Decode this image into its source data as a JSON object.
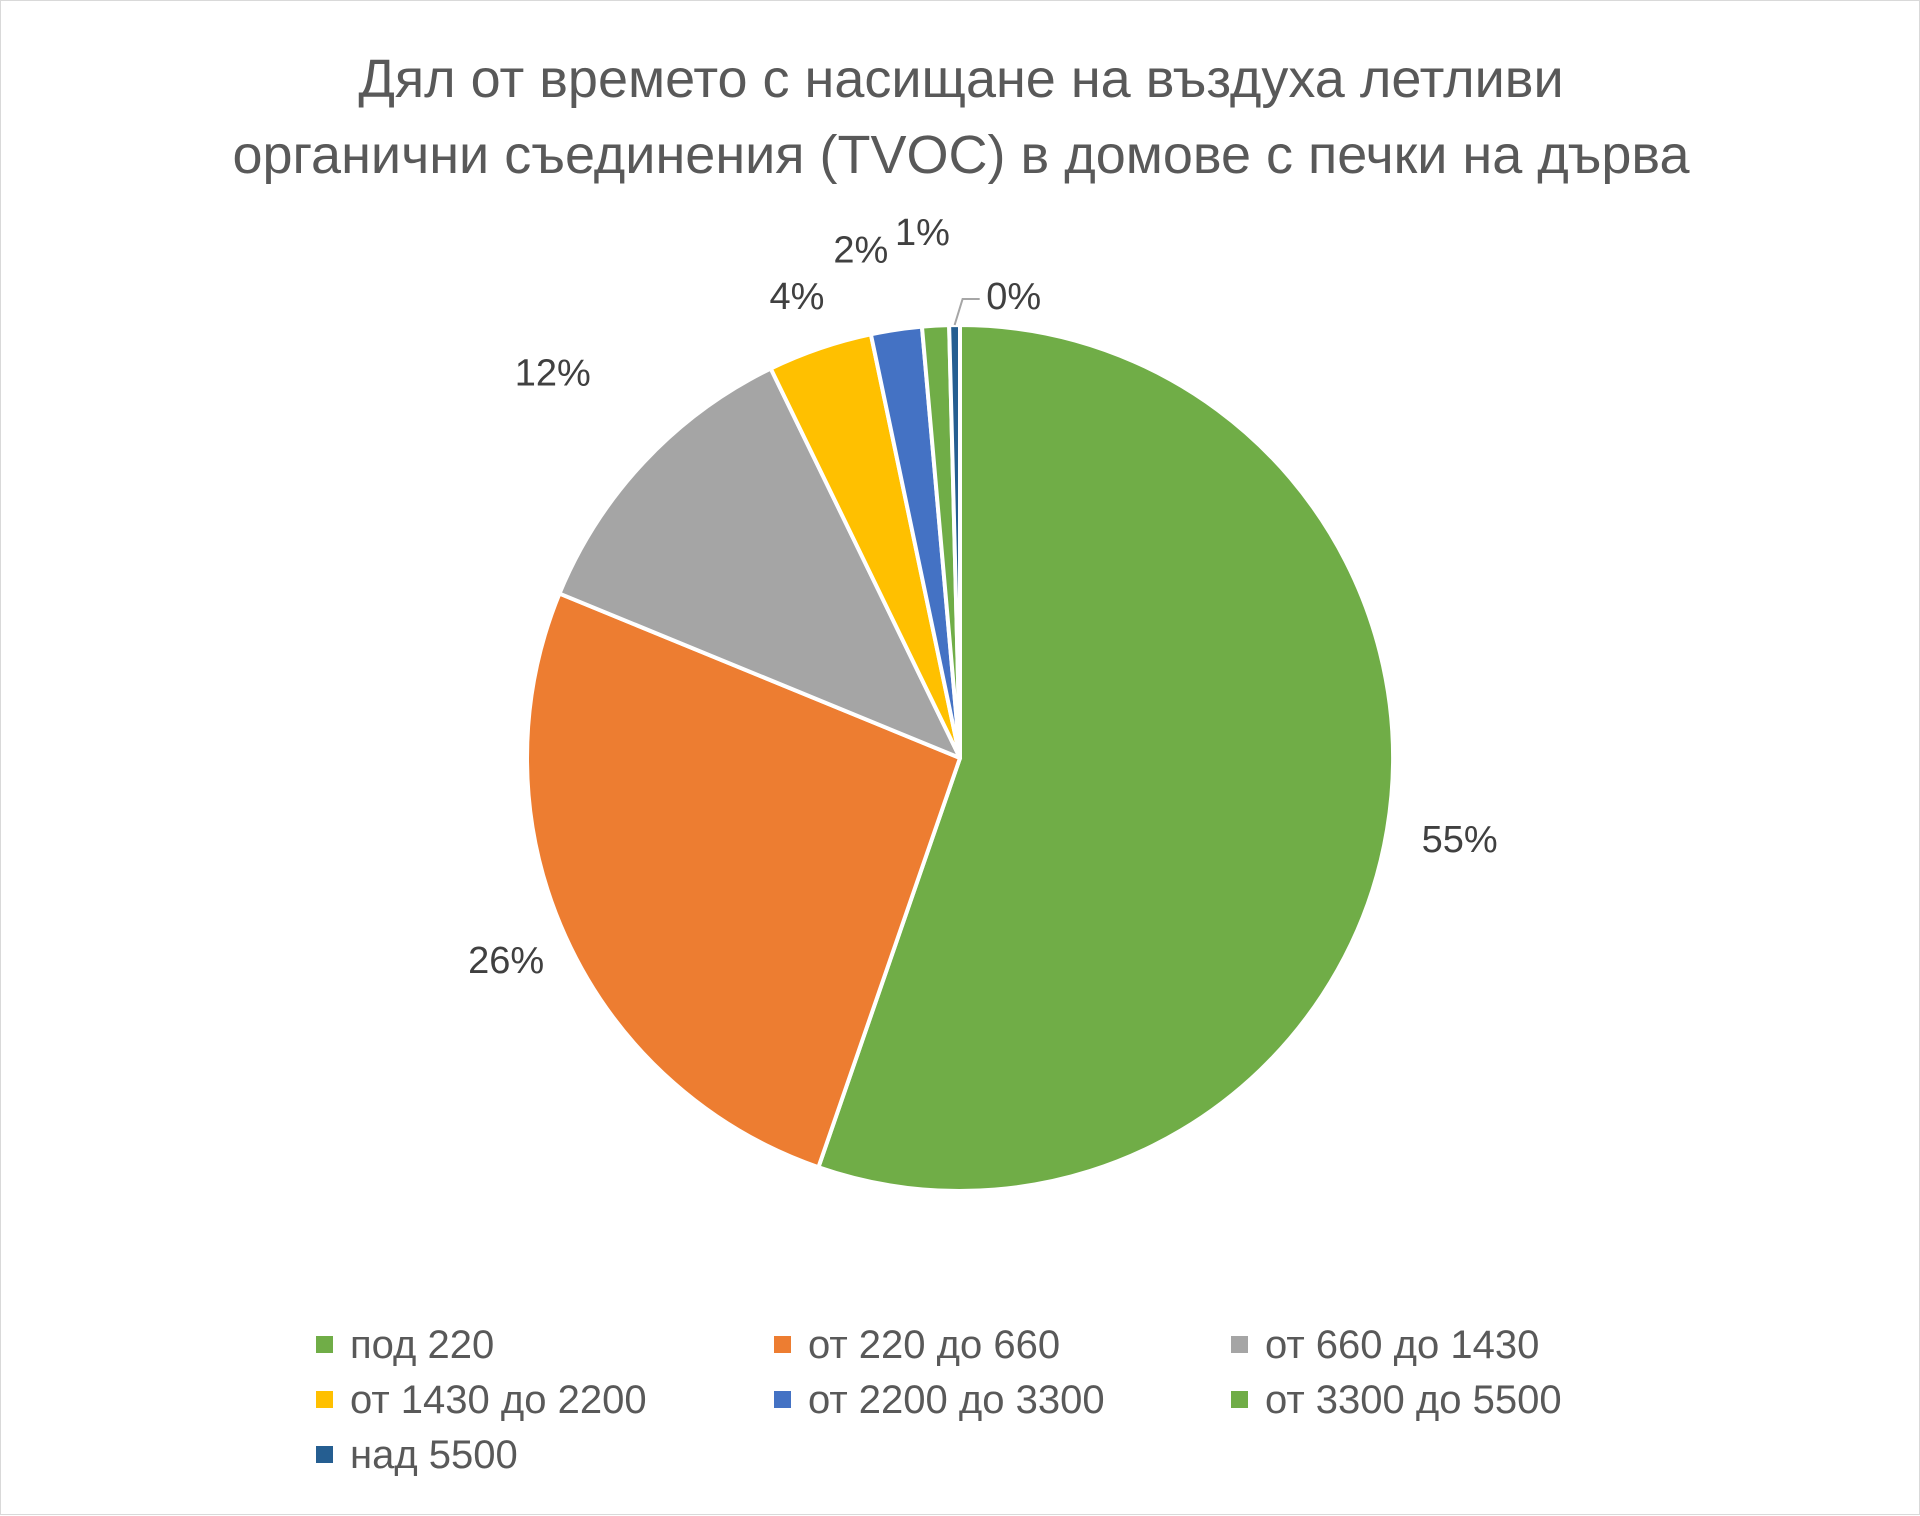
{
  "chart_data": {
    "type": "pie",
    "title_lines": [
      "Дял от времето с насищане на въздуха  летливи",
      "органични съединения (TVOC) в домове с печки на дърва"
    ],
    "categories": [
      "под 220",
      "от 220 до 660",
      "от 660 до 1430",
      "от 1430 до 2200",
      "от 2200 до 3300",
      "от 3300 до 5500",
      "над 5500"
    ],
    "values": [
      55.3,
      25.9,
      11.6,
      3.9,
      1.9,
      1.0,
      0.4
    ],
    "data_labels": [
      "55%",
      "26%",
      "12%",
      "4%",
      "2%",
      "1%",
      "0%"
    ],
    "colors": [
      "#70ad47",
      "#ed7d31",
      "#a5a5a5",
      "#ffc000",
      "#4472c4",
      "#70ad47",
      "#255e91"
    ],
    "legend_position": "bottom"
  }
}
